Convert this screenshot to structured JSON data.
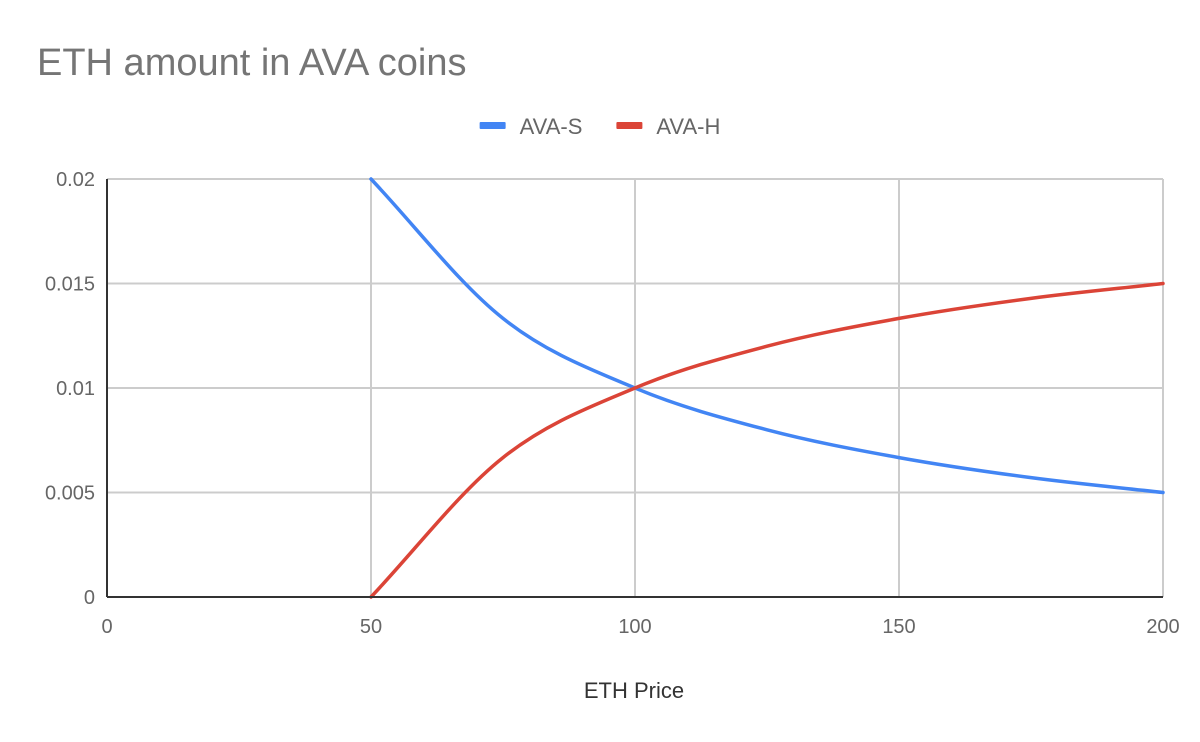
{
  "chart_data": {
    "type": "line",
    "title": "ETH amount in AVA coins",
    "xlabel": "ETH Price",
    "ylabel": "",
    "xlim": [
      0,
      200
    ],
    "ylim": [
      0,
      0.02
    ],
    "x_ticks": [
      0,
      50,
      100,
      150,
      200
    ],
    "x_tick_labels": [
      "0",
      "50",
      "100",
      "150",
      "200"
    ],
    "y_ticks": [
      0,
      0.005,
      0.01,
      0.015,
      0.02
    ],
    "y_tick_labels": [
      "0",
      "0.005",
      "0.01",
      "0.015",
      "0.02"
    ],
    "grid": true,
    "legend_position": "top-center",
    "x": [
      50,
      75,
      100,
      125,
      150,
      175,
      200
    ],
    "series": [
      {
        "name": "AVA-S",
        "color": "#4285f4",
        "values": [
          0.02,
          0.01333,
          0.01,
          0.008,
          0.00667,
          0.00571,
          0.005
        ]
      },
      {
        "name": "AVA-H",
        "color": "#db4437",
        "values": [
          0,
          0.00667,
          0.01,
          0.012,
          0.01333,
          0.01429,
          0.015
        ]
      }
    ]
  }
}
